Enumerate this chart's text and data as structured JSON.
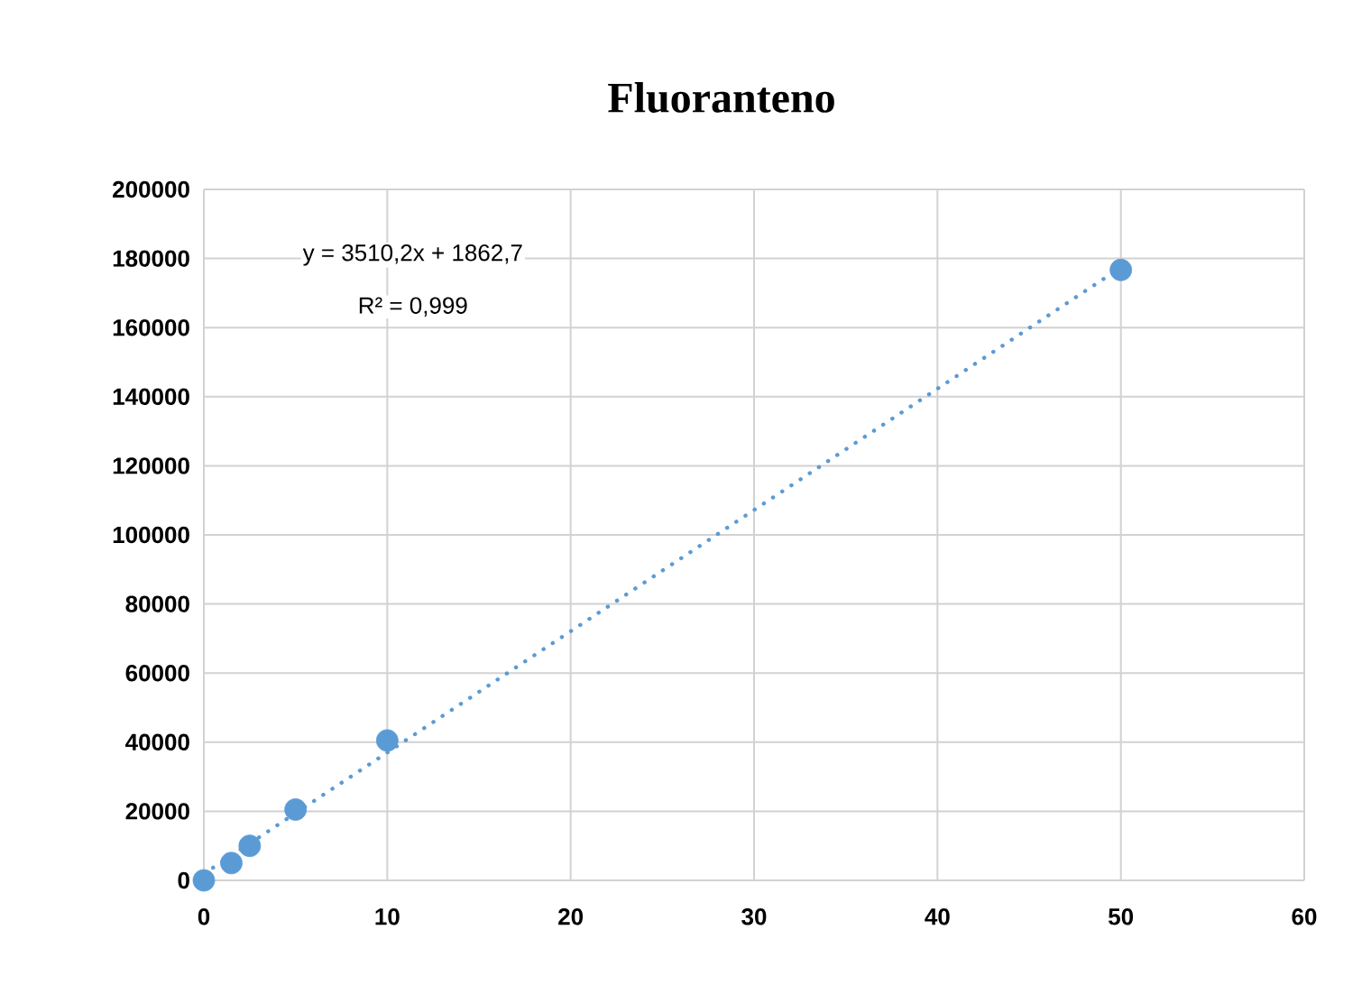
{
  "chart_data": {
    "type": "scatter",
    "title": "Fluoranteno",
    "series": [
      {
        "color": "#5b9bd5",
        "marker": "circle",
        "x": [
          0,
          1.5,
          2.5,
          5,
          10,
          50
        ],
        "values": [
          0,
          5000,
          10000,
          20500,
          40500,
          176700
        ]
      },
      {
        "type": "line",
        "color": "#5b9bd5",
        "line_style": "dotted",
        "marker": "none",
        "x": [
          0,
          50
        ],
        "values": [
          1900,
          177400
        ]
      }
    ],
    "xlim": [
      0,
      60
    ],
    "xticks": [
      0,
      10,
      20,
      30,
      40,
      50,
      60
    ],
    "ylim": [
      0,
      200000
    ],
    "yticks": [
      0,
      20000,
      40000,
      60000,
      80000,
      100000,
      120000,
      140000,
      160000,
      180000,
      200000
    ],
    "grid": true,
    "annotations": [
      "y = 3510,2x + 1862,7",
      "R² = 0,999"
    ]
  }
}
